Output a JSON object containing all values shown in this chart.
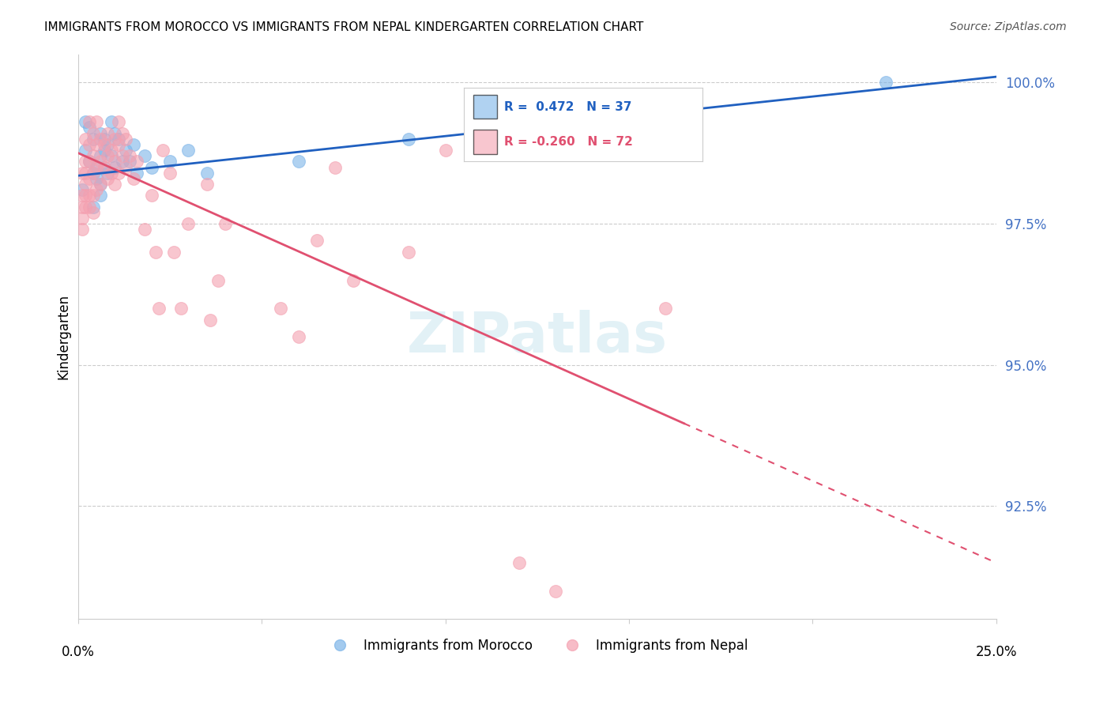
{
  "title": "IMMIGRANTS FROM MOROCCO VS IMMIGRANTS FROM NEPAL KINDERGARTEN CORRELATION CHART",
  "source": "Source: ZipAtlas.com",
  "ylabel": "Kindergarten",
  "ytick_labels": [
    "100.0%",
    "97.5%",
    "95.0%",
    "92.5%"
  ],
  "ytick_values": [
    1.0,
    0.975,
    0.95,
    0.925
  ],
  "xlim": [
    0.0,
    0.25
  ],
  "ylim": [
    0.905,
    1.005
  ],
  "legend1_r": "0.472",
  "legend1_n": "37",
  "legend2_r": "-0.260",
  "legend2_n": "72",
  "morocco_color": "#7cb4e8",
  "nepal_color": "#f4a0b0",
  "morocco_line_color": "#2060c0",
  "nepal_line_color": "#e05070",
  "watermark": "ZIPatlas",
  "morocco_points": [
    [
      0.001,
      0.981
    ],
    [
      0.002,
      0.993
    ],
    [
      0.002,
      0.988
    ],
    [
      0.003,
      0.992
    ],
    [
      0.003,
      0.986
    ],
    [
      0.004,
      0.984
    ],
    [
      0.004,
      0.978
    ],
    [
      0.004,
      0.99
    ],
    [
      0.005,
      0.985
    ],
    [
      0.005,
      0.983
    ],
    [
      0.006,
      0.991
    ],
    [
      0.006,
      0.987
    ],
    [
      0.006,
      0.982
    ],
    [
      0.006,
      0.98
    ],
    [
      0.007,
      0.99
    ],
    [
      0.007,
      0.988
    ],
    [
      0.007,
      0.985
    ],
    [
      0.008,
      0.989
    ],
    [
      0.008,
      0.984
    ],
    [
      0.009,
      0.993
    ],
    [
      0.009,
      0.987
    ],
    [
      0.01,
      0.991
    ],
    [
      0.01,
      0.985
    ],
    [
      0.011,
      0.99
    ],
    [
      0.012,
      0.986
    ],
    [
      0.013,
      0.988
    ],
    [
      0.014,
      0.986
    ],
    [
      0.015,
      0.989
    ],
    [
      0.016,
      0.984
    ],
    [
      0.018,
      0.987
    ],
    [
      0.02,
      0.985
    ],
    [
      0.025,
      0.986
    ],
    [
      0.03,
      0.988
    ],
    [
      0.035,
      0.984
    ],
    [
      0.06,
      0.986
    ],
    [
      0.09,
      0.99
    ],
    [
      0.22,
      1.0
    ]
  ],
  "nepal_points": [
    [
      0.001,
      0.984
    ],
    [
      0.001,
      0.98
    ],
    [
      0.001,
      0.978
    ],
    [
      0.001,
      0.976
    ],
    [
      0.001,
      0.974
    ],
    [
      0.002,
      0.99
    ],
    [
      0.002,
      0.986
    ],
    [
      0.002,
      0.984
    ],
    [
      0.002,
      0.982
    ],
    [
      0.002,
      0.98
    ],
    [
      0.002,
      0.978
    ],
    [
      0.003,
      0.993
    ],
    [
      0.003,
      0.989
    ],
    [
      0.003,
      0.986
    ],
    [
      0.003,
      0.983
    ],
    [
      0.003,
      0.98
    ],
    [
      0.003,
      0.978
    ],
    [
      0.004,
      0.991
    ],
    [
      0.004,
      0.987
    ],
    [
      0.004,
      0.984
    ],
    [
      0.004,
      0.98
    ],
    [
      0.004,
      0.977
    ],
    [
      0.005,
      0.993
    ],
    [
      0.005,
      0.989
    ],
    [
      0.005,
      0.985
    ],
    [
      0.005,
      0.981
    ],
    [
      0.006,
      0.99
    ],
    [
      0.006,
      0.986
    ],
    [
      0.006,
      0.982
    ],
    [
      0.007,
      0.989
    ],
    [
      0.007,
      0.985
    ],
    [
      0.008,
      0.991
    ],
    [
      0.008,
      0.987
    ],
    [
      0.008,
      0.983
    ],
    [
      0.009,
      0.988
    ],
    [
      0.009,
      0.984
    ],
    [
      0.01,
      0.99
    ],
    [
      0.01,
      0.986
    ],
    [
      0.01,
      0.982
    ],
    [
      0.011,
      0.993
    ],
    [
      0.011,
      0.989
    ],
    [
      0.011,
      0.984
    ],
    [
      0.012,
      0.991
    ],
    [
      0.012,
      0.987
    ],
    [
      0.013,
      0.99
    ],
    [
      0.013,
      0.985
    ],
    [
      0.014,
      0.987
    ],
    [
      0.015,
      0.983
    ],
    [
      0.016,
      0.986
    ],
    [
      0.018,
      0.974
    ],
    [
      0.02,
      0.98
    ],
    [
      0.021,
      0.97
    ],
    [
      0.022,
      0.96
    ],
    [
      0.023,
      0.988
    ],
    [
      0.025,
      0.984
    ],
    [
      0.026,
      0.97
    ],
    [
      0.028,
      0.96
    ],
    [
      0.03,
      0.975
    ],
    [
      0.035,
      0.982
    ],
    [
      0.036,
      0.958
    ],
    [
      0.038,
      0.965
    ],
    [
      0.04,
      0.975
    ],
    [
      0.055,
      0.96
    ],
    [
      0.06,
      0.955
    ],
    [
      0.065,
      0.972
    ],
    [
      0.07,
      0.985
    ],
    [
      0.075,
      0.965
    ],
    [
      0.09,
      0.97
    ],
    [
      0.1,
      0.988
    ],
    [
      0.12,
      0.915
    ],
    [
      0.13,
      0.91
    ],
    [
      0.16,
      0.96
    ]
  ]
}
